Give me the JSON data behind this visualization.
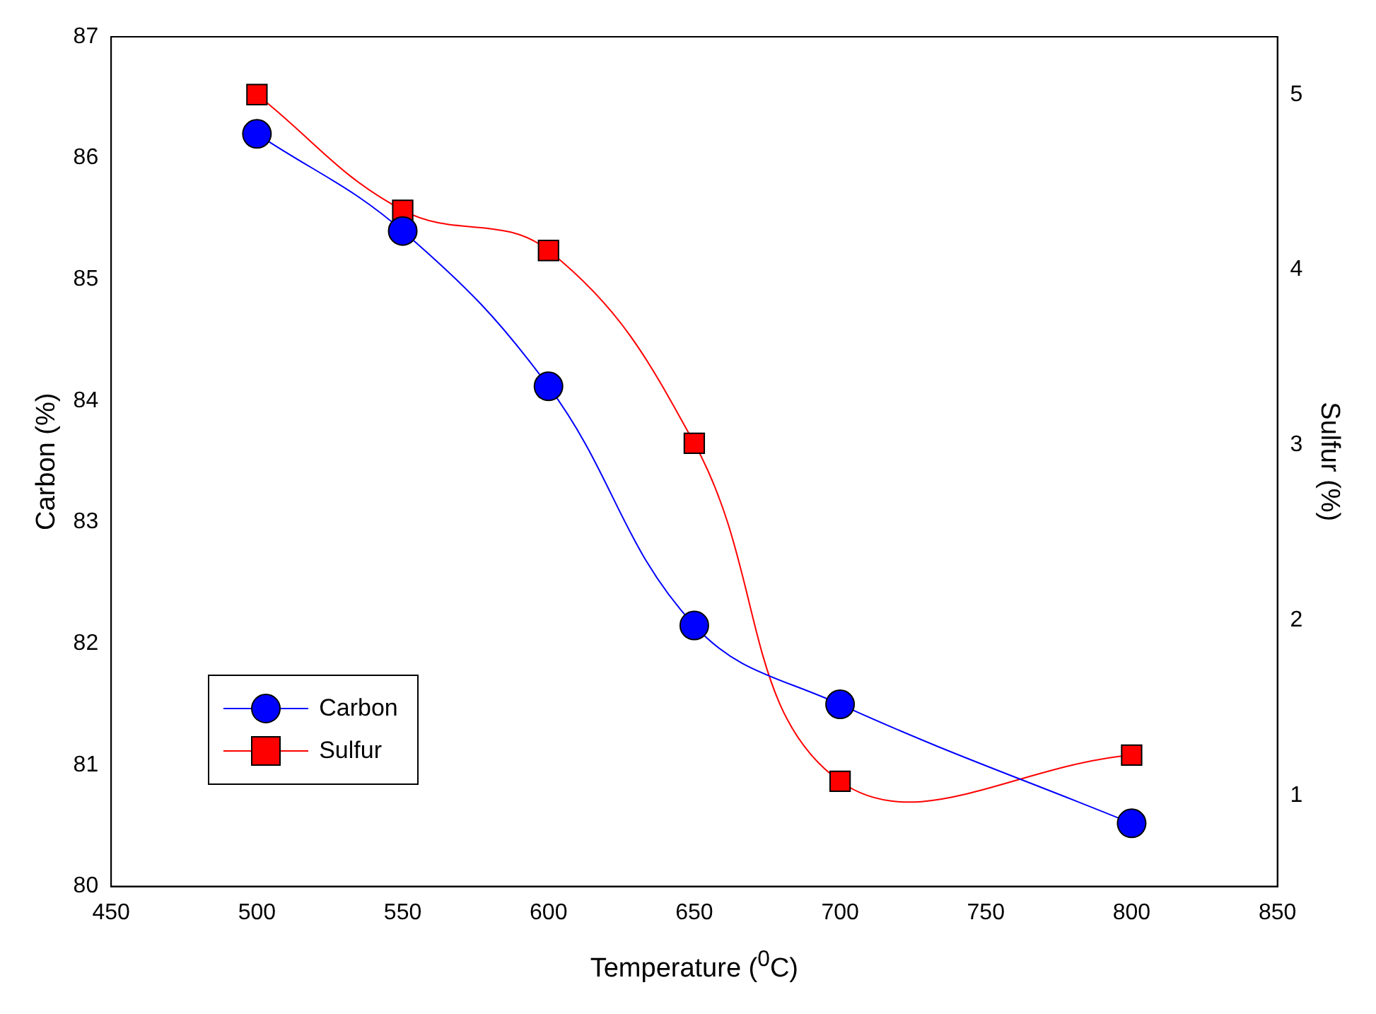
{
  "chart_data": {
    "type": "line",
    "xlabel": "Temperature ($^{0}$C)",
    "ylabel": "Carbon (%)",
    "y2label": "Sulfur (%)",
    "x": [
      500,
      550,
      600,
      650,
      700,
      800
    ],
    "series": [
      {
        "name": "Carbon",
        "color": "#0000ff",
        "marker": "circle",
        "values": [
          86.2,
          85.4,
          84.12,
          82.15,
          81.5,
          80.52
        ]
      },
      {
        "name": "Sulfur",
        "color": "#ff0000",
        "marker": "square",
        "axis": "y2",
        "values": [
          5.0,
          4.34,
          4.11,
          3.01,
          1.08,
          1.23
        ]
      }
    ],
    "xlim": [
      450,
      850
    ],
    "xticks": [
      450,
      500,
      550,
      600,
      650,
      700,
      750,
      800,
      850
    ],
    "ylim": [
      80,
      87
    ],
    "yticks": [
      80,
      81,
      82,
      83,
      84,
      85,
      86,
      87
    ],
    "y2lim": [
      0.48,
      5.33
    ],
    "y2ticks": [
      1,
      2,
      3,
      4,
      5
    ],
    "grid": false,
    "legend": "bottom left",
    "line_style": "solid"
  }
}
